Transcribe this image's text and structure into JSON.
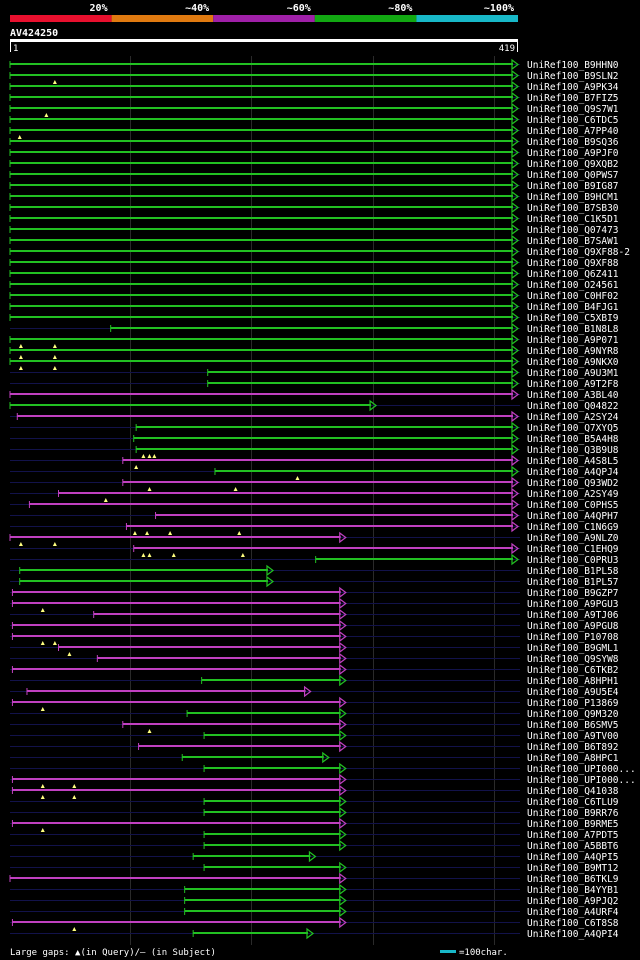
{
  "header": {
    "query_id": "AV424250",
    "scale_start": "1",
    "scale_end": "419",
    "colors": [
      "#e8102e",
      "#e07a10",
      "#a020a8",
      "#12a812",
      "#18b8c8"
    ],
    "identity_labels": [
      "20%",
      "~40%",
      "~60%",
      "~80%",
      "~100%"
    ]
  },
  "footer": {
    "legend_text": "Large gaps: ▲(in Query)/— (in Subject)",
    "scale_text": "=100char.",
    "scale_color": "#18b8c8"
  },
  "chart_data": {
    "type": "alignment",
    "x_range": [
      1,
      419
    ],
    "rows": [
      {
        "name": "UniRef100_B9HHN0",
        "start": 1,
        "end": 419,
        "color": "green",
        "arrow": true,
        "marks": []
      },
      {
        "name": "UniRef100_B9SLN2",
        "start": 1,
        "end": 419,
        "color": "green",
        "arrow": true,
        "marks": [
          38
        ]
      },
      {
        "name": "UniRef100_A9PK34",
        "start": 1,
        "end": 419,
        "color": "green",
        "arrow": true,
        "marks": []
      },
      {
        "name": "UniRef100_B7FIZ5",
        "start": 1,
        "end": 419,
        "color": "green",
        "arrow": true,
        "marks": []
      },
      {
        "name": "UniRef100_Q9S7W1",
        "start": 1,
        "end": 419,
        "color": "green",
        "arrow": true,
        "marks": [
          31
        ]
      },
      {
        "name": "UniRef100_C6TDC5",
        "start": 1,
        "end": 419,
        "color": "green",
        "arrow": true,
        "marks": []
      },
      {
        "name": "UniRef100_A7PP40",
        "start": 1,
        "end": 419,
        "color": "green",
        "arrow": true,
        "marks": [
          9
        ]
      },
      {
        "name": "UniRef100_B9SQ36",
        "start": 1,
        "end": 419,
        "color": "green",
        "arrow": true,
        "marks": []
      },
      {
        "name": "UniRef100_A9PJF0",
        "start": 1,
        "end": 419,
        "color": "green",
        "arrow": true,
        "marks": []
      },
      {
        "name": "UniRef100_Q9XQB2",
        "start": 1,
        "end": 419,
        "color": "green",
        "arrow": true,
        "marks": []
      },
      {
        "name": "UniRef100_Q0PWS7",
        "start": 1,
        "end": 419,
        "color": "green",
        "arrow": true,
        "marks": []
      },
      {
        "name": "UniRef100_B9IG87",
        "start": 1,
        "end": 419,
        "color": "green",
        "arrow": true,
        "marks": []
      },
      {
        "name": "UniRef100_B9HCM1",
        "start": 1,
        "end": 419,
        "color": "green",
        "arrow": true,
        "marks": []
      },
      {
        "name": "UniRef100_B7SB30",
        "start": 1,
        "end": 419,
        "color": "green",
        "arrow": true,
        "marks": []
      },
      {
        "name": "UniRef100_C1K5D1",
        "start": 1,
        "end": 419,
        "color": "green",
        "arrow": true,
        "marks": []
      },
      {
        "name": "UniRef100_Q07473",
        "start": 1,
        "end": 419,
        "color": "green",
        "arrow": true,
        "marks": []
      },
      {
        "name": "UniRef100_B7SAW1",
        "start": 1,
        "end": 419,
        "color": "green",
        "arrow": true,
        "marks": []
      },
      {
        "name": "UniRef100_Q9XF88-2",
        "start": 1,
        "end": 419,
        "color": "green",
        "arrow": true,
        "marks": []
      },
      {
        "name": "UniRef100_Q9XF88",
        "start": 1,
        "end": 419,
        "color": "green",
        "arrow": true,
        "marks": []
      },
      {
        "name": "UniRef100_Q6Z411",
        "start": 1,
        "end": 419,
        "color": "green",
        "arrow": true,
        "marks": []
      },
      {
        "name": "UniRef100_O24561",
        "start": 1,
        "end": 419,
        "color": "green",
        "arrow": true,
        "marks": []
      },
      {
        "name": "UniRef100_C0HF02",
        "start": 1,
        "end": 419,
        "color": "green",
        "arrow": true,
        "marks": []
      },
      {
        "name": "UniRef100_B4FJG1",
        "start": 1,
        "end": 419,
        "color": "green",
        "arrow": true,
        "marks": []
      },
      {
        "name": "UniRef100_C5XBI9",
        "start": 1,
        "end": 419,
        "color": "green",
        "arrow": true,
        "marks": []
      },
      {
        "name": "UniRef100_B1N8L8",
        "start": 84,
        "end": 419,
        "color": "green",
        "arrow": true,
        "marks": []
      },
      {
        "name": "UniRef100_A9P071",
        "start": 1,
        "end": 419,
        "color": "green",
        "arrow": true,
        "marks": [
          10,
          38
        ]
      },
      {
        "name": "UniRef100_A9NYR8",
        "start": 1,
        "end": 419,
        "color": "green",
        "arrow": true,
        "marks": [
          10,
          38
        ]
      },
      {
        "name": "UniRef100_A9NKX0",
        "start": 1,
        "end": 419,
        "color": "green",
        "arrow": true,
        "marks": [
          10,
          38
        ]
      },
      {
        "name": "UniRef100_A9U3M1",
        "start": 164,
        "end": 419,
        "color": "green",
        "arrow": true,
        "marks": []
      },
      {
        "name": "UniRef100_A9T2F8",
        "start": 164,
        "end": 419,
        "color": "green",
        "arrow": true,
        "marks": []
      },
      {
        "name": "UniRef100_A3BL40",
        "start": 1,
        "end": 419,
        "color": "purple",
        "arrow": true,
        "marks": []
      },
      {
        "name": "UniRef100_Q04822",
        "start": 1,
        "end": 302,
        "color": "green",
        "arrow": true,
        "marks": []
      },
      {
        "name": "UniRef100_A2SY24",
        "start": 7,
        "end": 419,
        "color": "purple",
        "arrow": true,
        "marks": []
      },
      {
        "name": "UniRef100_Q7XYQ5",
        "start": 105,
        "end": 419,
        "color": "green",
        "arrow": true,
        "marks": []
      },
      {
        "name": "UniRef100_B5A4H8",
        "start": 103,
        "end": 419,
        "color": "green",
        "arrow": true,
        "marks": []
      },
      {
        "name": "UniRef100_Q3B9U8",
        "start": 105,
        "end": 419,
        "color": "green",
        "arrow": true,
        "marks": [
          111,
          116,
          120
        ]
      },
      {
        "name": "UniRef100_A4S8L5",
        "start": 94,
        "end": 419,
        "color": "purple",
        "arrow": true,
        "marks": [
          105
        ]
      },
      {
        "name": "UniRef100_A4QPJ4",
        "start": 170,
        "end": 419,
        "color": "green",
        "arrow": true,
        "marks": [
          238
        ]
      },
      {
        "name": "UniRef100_Q93WD2",
        "start": 94,
        "end": 419,
        "color": "purple",
        "arrow": true,
        "marks": [
          116,
          187
        ]
      },
      {
        "name": "UniRef100_A2SY49",
        "start": 41,
        "end": 419,
        "color": "purple",
        "arrow": true,
        "marks": [
          80
        ]
      },
      {
        "name": "UniRef100_C0PHS5",
        "start": 17,
        "end": 419,
        "color": "purple",
        "arrow": true,
        "marks": []
      },
      {
        "name": "UniRef100_A4QPH7",
        "start": 121,
        "end": 419,
        "color": "purple",
        "arrow": true,
        "marks": []
      },
      {
        "name": "UniRef100_C1N6G9",
        "start": 97,
        "end": 419,
        "color": "purple",
        "arrow": true,
        "marks": [
          104,
          114,
          133,
          190
        ]
      },
      {
        "name": "UniRef100_A9NLZ0",
        "start": 1,
        "end": 277,
        "color": "purple",
        "arrow": true,
        "marks": [
          10,
          38
        ]
      },
      {
        "name": "UniRef100_C1EHQ9",
        "start": 103,
        "end": 419,
        "color": "purple",
        "arrow": true,
        "marks": [
          111,
          116,
          136,
          193
        ]
      },
      {
        "name": "UniRef100_C0PRU3",
        "start": 253,
        "end": 419,
        "color": "green",
        "arrow": true,
        "marks": []
      },
      {
        "name": "UniRef100_B1PL58",
        "start": 9,
        "end": 217,
        "color": "green",
        "arrow": true,
        "marks": []
      },
      {
        "name": "UniRef100_B1PL57",
        "start": 9,
        "end": 217,
        "color": "green",
        "arrow": true,
        "marks": []
      },
      {
        "name": "UniRef100_B9GZP7",
        "start": 3,
        "end": 277,
        "color": "purple",
        "arrow": true,
        "marks": []
      },
      {
        "name": "UniRef100_A9PGU3",
        "start": 3,
        "end": 277,
        "color": "purple",
        "arrow": true,
        "marks": [
          28
        ]
      },
      {
        "name": "UniRef100_A9TJ06",
        "start": 70,
        "end": 277,
        "color": "purple",
        "arrow": true,
        "marks": []
      },
      {
        "name": "UniRef100_A9PGU8",
        "start": 3,
        "end": 277,
        "color": "purple",
        "arrow": true,
        "marks": []
      },
      {
        "name": "UniRef100_P10708",
        "start": 3,
        "end": 277,
        "color": "purple",
        "arrow": true,
        "marks": [
          28,
          38
        ]
      },
      {
        "name": "UniRef100_B9GML1",
        "start": 41,
        "end": 277,
        "color": "purple",
        "arrow": true,
        "marks": [
          50
        ]
      },
      {
        "name": "UniRef100_Q9SYW8",
        "start": 73,
        "end": 277,
        "color": "purple",
        "arrow": true,
        "marks": []
      },
      {
        "name": "UniRef100_C6TKB2",
        "start": 3,
        "end": 277,
        "color": "purple",
        "arrow": true,
        "marks": []
      },
      {
        "name": "UniRef100_A8HPH1",
        "start": 159,
        "end": 277,
        "color": "green",
        "arrow": true,
        "marks": []
      },
      {
        "name": "UniRef100_A9U5E4",
        "start": 15,
        "end": 248,
        "color": "purple",
        "arrow": true,
        "marks": []
      },
      {
        "name": "UniRef100_P13869",
        "start": 3,
        "end": 277,
        "color": "purple",
        "arrow": true,
        "marks": [
          28
        ]
      },
      {
        "name": "UniRef100_Q9M320",
        "start": 147,
        "end": 277,
        "color": "green",
        "arrow": true,
        "marks": []
      },
      {
        "name": "UniRef100_B6SMV5",
        "start": 94,
        "end": 277,
        "color": "purple",
        "arrow": true,
        "marks": [
          116
        ]
      },
      {
        "name": "UniRef100_A9TV00",
        "start": 161,
        "end": 277,
        "color": "green",
        "arrow": true,
        "marks": []
      },
      {
        "name": "UniRef100_B6T892",
        "start": 107,
        "end": 277,
        "color": "purple",
        "arrow": true,
        "marks": []
      },
      {
        "name": "UniRef100_A8HPC1",
        "start": 143,
        "end": 263,
        "color": "green",
        "arrow": true,
        "marks": []
      },
      {
        "name": "UniRef100_UPI000...",
        "start": 161,
        "end": 277,
        "color": "green",
        "arrow": true,
        "marks": []
      },
      {
        "name": "UniRef100_UPI000...",
        "start": 3,
        "end": 277,
        "color": "purple",
        "arrow": true,
        "marks": [
          28,
          54
        ]
      },
      {
        "name": "UniRef100_Q41038",
        "start": 3,
        "end": 277,
        "color": "purple",
        "arrow": true,
        "marks": [
          28,
          54
        ]
      },
      {
        "name": "UniRef100_C6TLU9",
        "start": 161,
        "end": 277,
        "color": "green",
        "arrow": true,
        "marks": []
      },
      {
        "name": "UniRef100_B9RR76",
        "start": 161,
        "end": 277,
        "color": "green",
        "arrow": true,
        "marks": []
      },
      {
        "name": "UniRef100_B9RME5",
        "start": 3,
        "end": 277,
        "color": "purple",
        "arrow": true,
        "marks": [
          28
        ]
      },
      {
        "name": "UniRef100_A7PDT5",
        "start": 161,
        "end": 277,
        "color": "green",
        "arrow": true,
        "marks": []
      },
      {
        "name": "UniRef100_A5BBT6",
        "start": 161,
        "end": 277,
        "color": "green",
        "arrow": true,
        "marks": []
      },
      {
        "name": "UniRef100_A4QPI5",
        "start": 152,
        "end": 252,
        "color": "green",
        "arrow": true,
        "marks": []
      },
      {
        "name": "UniRef100_B9MT12",
        "start": 161,
        "end": 277,
        "color": "green",
        "arrow": true,
        "marks": []
      },
      {
        "name": "UniRef100_B6TKL9",
        "start": 1,
        "end": 277,
        "color": "purple",
        "arrow": true,
        "marks": []
      },
      {
        "name": "UniRef100_B4YYB1",
        "start": 145,
        "end": 277,
        "color": "green",
        "arrow": true,
        "marks": []
      },
      {
        "name": "UniRef100_A9PJQ2",
        "start": 145,
        "end": 277,
        "color": "green",
        "arrow": true,
        "marks": []
      },
      {
        "name": "UniRef100_A4URF4",
        "start": 145,
        "end": 277,
        "color": "green",
        "arrow": true,
        "marks": []
      },
      {
        "name": "UniRef100_C6T8S8",
        "start": 3,
        "end": 277,
        "color": "purple",
        "arrow": true,
        "marks": [
          54
        ]
      },
      {
        "name": "UniRef100_A4QPI4",
        "start": 152,
        "end": 250,
        "color": "green",
        "arrow": true,
        "marks": []
      }
    ]
  }
}
